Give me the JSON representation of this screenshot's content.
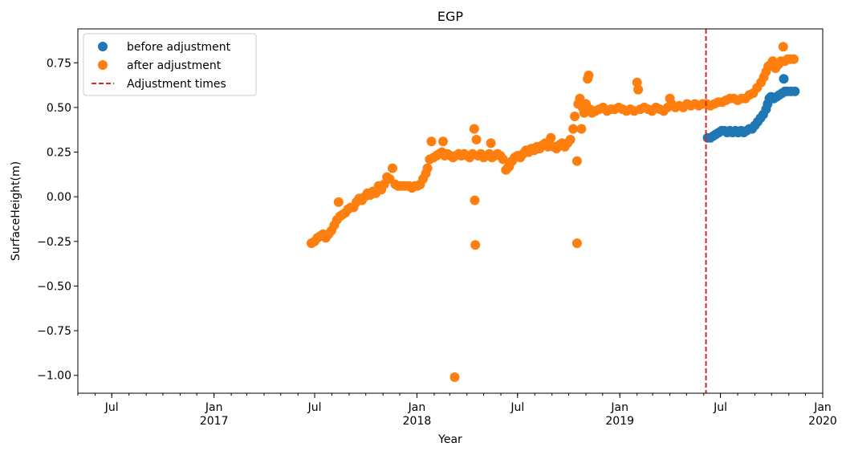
{
  "chart_data": {
    "type": "scatter",
    "title": "EGP",
    "xlabel": "Year",
    "ylabel": "SurfaceHeight(m)",
    "xlim": [
      "2016-05-01",
      "2020-01-01"
    ],
    "ylim": [
      -1.1,
      0.94
    ],
    "y_ticks": [
      0.75,
      0.5,
      0.25,
      0.0,
      -0.25,
      -0.5,
      -0.75,
      -1.0
    ],
    "y_tick_labels": [
      "0.75",
      "0.50",
      "0.25",
      "0.00",
      "−0.25",
      "−0.50",
      "−0.75",
      "−1.00"
    ],
    "x_major_ticks": [
      {
        "date": "2016-07-01",
        "label": "Jul",
        "sublabel": ""
      },
      {
        "date": "2017-01-01",
        "label": "Jan",
        "sublabel": "2017"
      },
      {
        "date": "2017-07-01",
        "label": "Jul",
        "sublabel": ""
      },
      {
        "date": "2018-01-01",
        "label": "Jan",
        "sublabel": "2018"
      },
      {
        "date": "2018-07-01",
        "label": "Jul",
        "sublabel": ""
      },
      {
        "date": "2019-01-01",
        "label": "Jan",
        "sublabel": "2019"
      },
      {
        "date": "2019-07-01",
        "label": "Jul",
        "sublabel": ""
      },
      {
        "date": "2020-01-01",
        "label": "Jan",
        "sublabel": "2020"
      }
    ],
    "grid": false,
    "legend_position": "top-left",
    "series": [
      {
        "name": "before adjustment",
        "color": "#1f77b4",
        "points": [
          [
            "2019-06-08",
            0.33
          ],
          [
            "2019-06-13",
            0.33
          ],
          [
            "2019-06-18",
            0.34
          ],
          [
            "2019-06-23",
            0.35
          ],
          [
            "2019-06-28",
            0.36
          ],
          [
            "2019-07-03",
            0.37
          ],
          [
            "2019-07-08",
            0.37
          ],
          [
            "2019-07-13",
            0.36
          ],
          [
            "2019-07-18",
            0.37
          ],
          [
            "2019-07-23",
            0.36
          ],
          [
            "2019-07-28",
            0.37
          ],
          [
            "2019-08-02",
            0.36
          ],
          [
            "2019-08-07",
            0.37
          ],
          [
            "2019-08-12",
            0.36
          ],
          [
            "2019-08-17",
            0.37
          ],
          [
            "2019-08-22",
            0.38
          ],
          [
            "2019-08-27",
            0.38
          ],
          [
            "2019-09-01",
            0.4
          ],
          [
            "2019-09-06",
            0.42
          ],
          [
            "2019-09-11",
            0.44
          ],
          [
            "2019-09-16",
            0.46
          ],
          [
            "2019-09-21",
            0.49
          ],
          [
            "2019-09-24",
            0.52
          ],
          [
            "2019-09-27",
            0.55
          ],
          [
            "2019-09-30",
            0.56
          ],
          [
            "2019-10-05",
            0.55
          ],
          [
            "2019-10-10",
            0.56
          ],
          [
            "2019-10-15",
            0.57
          ],
          [
            "2019-10-20",
            0.58
          ],
          [
            "2019-10-25",
            0.59
          ],
          [
            "2019-10-30",
            0.59
          ],
          [
            "2019-11-05",
            0.59
          ],
          [
            "2019-11-12",
            0.59
          ],
          [
            "2019-10-23",
            0.66
          ]
        ]
      },
      {
        "name": "after adjustment",
        "color": "#ff7f0e",
        "points": [
          [
            "2017-06-25",
            -0.26
          ],
          [
            "2017-07-01",
            -0.25
          ],
          [
            "2017-07-06",
            -0.23
          ],
          [
            "2017-07-11",
            -0.22
          ],
          [
            "2017-07-16",
            -0.21
          ],
          [
            "2017-07-21",
            -0.23
          ],
          [
            "2017-07-26",
            -0.21
          ],
          [
            "2017-07-31",
            -0.19
          ],
          [
            "2017-08-05",
            -0.16
          ],
          [
            "2017-08-10",
            -0.13
          ],
          [
            "2017-08-13",
            -0.03
          ],
          [
            "2017-08-15",
            -0.11
          ],
          [
            "2017-08-20",
            -0.1
          ],
          [
            "2017-08-25",
            -0.09
          ],
          [
            "2017-08-30",
            -0.07
          ],
          [
            "2017-09-04",
            -0.06
          ],
          [
            "2017-09-09",
            -0.06
          ],
          [
            "2017-09-14",
            -0.03
          ],
          [
            "2017-09-19",
            -0.01
          ],
          [
            "2017-09-24",
            -0.02
          ],
          [
            "2017-09-29",
            0.0
          ],
          [
            "2017-10-04",
            0.02
          ],
          [
            "2017-10-09",
            0.01
          ],
          [
            "2017-10-14",
            0.03
          ],
          [
            "2017-10-19",
            0.02
          ],
          [
            "2017-10-24",
            0.06
          ],
          [
            "2017-10-29",
            0.04
          ],
          [
            "2017-11-03",
            0.07
          ],
          [
            "2017-11-08",
            0.11
          ],
          [
            "2017-11-13",
            0.1
          ],
          [
            "2017-11-18",
            0.16
          ],
          [
            "2017-11-23",
            0.07
          ],
          [
            "2017-11-28",
            0.06
          ],
          [
            "2017-12-03",
            0.06
          ],
          [
            "2017-12-08",
            0.06
          ],
          [
            "2017-12-13",
            0.06
          ],
          [
            "2017-12-18",
            0.06
          ],
          [
            "2017-12-23",
            0.05
          ],
          [
            "2017-12-28",
            0.06
          ],
          [
            "2018-01-02",
            0.06
          ],
          [
            "2018-01-07",
            0.07
          ],
          [
            "2018-01-12",
            0.1
          ],
          [
            "2018-01-17",
            0.13
          ],
          [
            "2018-01-20",
            0.16
          ],
          [
            "2018-01-24",
            0.21
          ],
          [
            "2018-01-27",
            0.31
          ],
          [
            "2018-01-31",
            0.22
          ],
          [
            "2018-02-05",
            0.23
          ],
          [
            "2018-02-10",
            0.24
          ],
          [
            "2018-02-15",
            0.25
          ],
          [
            "2018-02-17",
            0.31
          ],
          [
            "2018-02-20",
            0.23
          ],
          [
            "2018-02-25",
            0.24
          ],
          [
            "2018-03-02",
            0.23
          ],
          [
            "2018-03-07",
            0.22
          ],
          [
            "2018-03-10",
            -1.01
          ],
          [
            "2018-03-12",
            0.23
          ],
          [
            "2018-03-17",
            0.24
          ],
          [
            "2018-03-22",
            0.23
          ],
          [
            "2018-03-27",
            0.24
          ],
          [
            "2018-04-01",
            0.23
          ],
          [
            "2018-04-06",
            0.22
          ],
          [
            "2018-04-11",
            0.24
          ],
          [
            "2018-04-14",
            0.38
          ],
          [
            "2018-04-15",
            -0.02
          ],
          [
            "2018-04-16",
            -0.27
          ],
          [
            "2018-04-18",
            0.32
          ],
          [
            "2018-04-21",
            0.23
          ],
          [
            "2018-04-26",
            0.24
          ],
          [
            "2018-05-01",
            0.22
          ],
          [
            "2018-05-06",
            0.23
          ],
          [
            "2018-05-11",
            0.24
          ],
          [
            "2018-05-14",
            0.3
          ],
          [
            "2018-05-16",
            0.22
          ],
          [
            "2018-05-21",
            0.23
          ],
          [
            "2018-05-26",
            0.24
          ],
          [
            "2018-05-31",
            0.23
          ],
          [
            "2018-06-05",
            0.21
          ],
          [
            "2018-06-10",
            0.15
          ],
          [
            "2018-06-13",
            0.16
          ],
          [
            "2018-06-16",
            0.17
          ],
          [
            "2018-06-21",
            0.2
          ],
          [
            "2018-06-26",
            0.22
          ],
          [
            "2018-07-01",
            0.23
          ],
          [
            "2018-07-06",
            0.22
          ],
          [
            "2018-07-11",
            0.24
          ],
          [
            "2018-07-16",
            0.26
          ],
          [
            "2018-07-21",
            0.25
          ],
          [
            "2018-07-26",
            0.27
          ],
          [
            "2018-07-31",
            0.26
          ],
          [
            "2018-08-05",
            0.28
          ],
          [
            "2018-08-10",
            0.27
          ],
          [
            "2018-08-15",
            0.29
          ],
          [
            "2018-08-20",
            0.3
          ],
          [
            "2018-08-25",
            0.28
          ],
          [
            "2018-08-30",
            0.33
          ],
          [
            "2018-09-04",
            0.28
          ],
          [
            "2018-09-09",
            0.27
          ],
          [
            "2018-09-14",
            0.29
          ],
          [
            "2018-09-19",
            0.3
          ],
          [
            "2018-09-24",
            0.28
          ],
          [
            "2018-09-29",
            0.3
          ],
          [
            "2018-10-04",
            0.32
          ],
          [
            "2018-10-09",
            0.38
          ],
          [
            "2018-10-12",
            0.45
          ],
          [
            "2018-10-16",
            0.2
          ],
          [
            "2018-10-16",
            -0.26
          ],
          [
            "2018-10-18",
            0.52
          ],
          [
            "2018-10-21",
            0.55
          ],
          [
            "2018-10-24",
            0.38
          ],
          [
            "2018-10-26",
            0.5
          ],
          [
            "2018-10-29",
            0.47
          ],
          [
            "2018-11-01",
            0.52
          ],
          [
            "2018-11-04",
            0.66
          ],
          [
            "2018-11-06",
            0.68
          ],
          [
            "2018-11-08",
            0.49
          ],
          [
            "2018-11-12",
            0.47
          ],
          [
            "2018-11-18",
            0.48
          ],
          [
            "2018-11-25",
            0.49
          ],
          [
            "2018-12-02",
            0.5
          ],
          [
            "2018-12-09",
            0.48
          ],
          [
            "2018-12-16",
            0.49
          ],
          [
            "2018-12-23",
            0.49
          ],
          [
            "2018-12-30",
            0.5
          ],
          [
            "2019-01-06",
            0.49
          ],
          [
            "2019-01-13",
            0.48
          ],
          [
            "2019-01-20",
            0.49
          ],
          [
            "2019-01-27",
            0.48
          ],
          [
            "2019-02-01",
            0.64
          ],
          [
            "2019-02-03",
            0.6
          ],
          [
            "2019-02-07",
            0.49
          ],
          [
            "2019-02-14",
            0.5
          ],
          [
            "2019-02-21",
            0.49
          ],
          [
            "2019-02-28",
            0.48
          ],
          [
            "2019-03-07",
            0.5
          ],
          [
            "2019-03-14",
            0.49
          ],
          [
            "2019-03-21",
            0.48
          ],
          [
            "2019-03-28",
            0.5
          ],
          [
            "2019-04-01",
            0.55
          ],
          [
            "2019-04-04",
            0.52
          ],
          [
            "2019-04-11",
            0.5
          ],
          [
            "2019-04-18",
            0.51
          ],
          [
            "2019-04-25",
            0.5
          ],
          [
            "2019-05-02",
            0.52
          ],
          [
            "2019-05-09",
            0.51
          ],
          [
            "2019-05-16",
            0.52
          ],
          [
            "2019-05-23",
            0.51
          ],
          [
            "2019-05-30",
            0.52
          ],
          [
            "2019-06-06",
            0.52
          ],
          [
            "2019-06-13",
            0.51
          ],
          [
            "2019-06-20",
            0.52
          ],
          [
            "2019-06-27",
            0.53
          ],
          [
            "2019-07-04",
            0.53
          ],
          [
            "2019-07-11",
            0.54
          ],
          [
            "2019-07-18",
            0.55
          ],
          [
            "2019-07-25",
            0.55
          ],
          [
            "2019-08-01",
            0.54
          ],
          [
            "2019-08-08",
            0.55
          ],
          [
            "2019-08-15",
            0.55
          ],
          [
            "2019-08-22",
            0.57
          ],
          [
            "2019-08-29",
            0.58
          ],
          [
            "2019-09-05",
            0.61
          ],
          [
            "2019-09-12",
            0.64
          ],
          [
            "2019-09-17",
            0.67
          ],
          [
            "2019-09-21",
            0.7
          ],
          [
            "2019-09-25",
            0.73
          ],
          [
            "2019-09-29",
            0.74
          ],
          [
            "2019-10-03",
            0.76
          ],
          [
            "2019-10-08",
            0.72
          ],
          [
            "2019-10-13",
            0.74
          ],
          [
            "2019-10-18",
            0.76
          ],
          [
            "2019-10-22",
            0.84
          ],
          [
            "2019-10-25",
            0.76
          ],
          [
            "2019-10-30",
            0.77
          ],
          [
            "2019-11-04",
            0.77
          ],
          [
            "2019-11-10",
            0.77
          ]
        ]
      }
    ],
    "vlines": [
      {
        "name": "Adjustment times",
        "date": "2019-06-05",
        "color": "#d62728",
        "style": "dashed"
      }
    ]
  }
}
